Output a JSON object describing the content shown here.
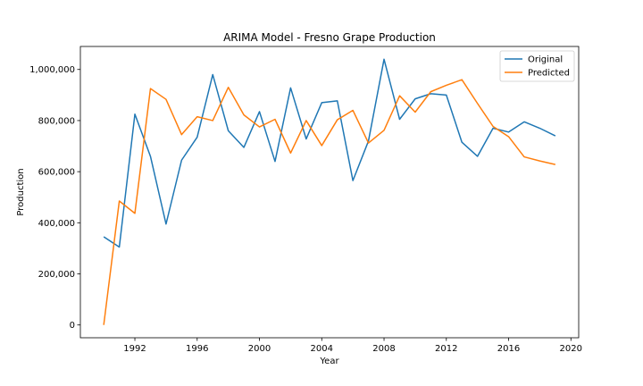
{
  "chart_data": {
    "type": "line",
    "title": "ARIMA Model - Fresno Grape Production",
    "xlabel": "Year",
    "ylabel": "Production",
    "x": [
      1990,
      1991,
      1992,
      1993,
      1994,
      1995,
      1996,
      1997,
      1998,
      1999,
      2000,
      2001,
      2002,
      2003,
      2004,
      2005,
      2006,
      2007,
      2008,
      2009,
      2010,
      2011,
      2012,
      2013,
      2014,
      2015,
      2016,
      2017,
      2018,
      2019
    ],
    "xlim": [
      1988.5,
      2020.5
    ],
    "ylim": [
      -50000,
      1090000
    ],
    "xticks": [
      1992,
      1996,
      2000,
      2004,
      2008,
      2012,
      2016,
      2020
    ],
    "xtick_labels": [
      "1992",
      "1996",
      "2000",
      "2004",
      "2008",
      "2012",
      "2016",
      "2020"
    ],
    "yticks": [
      0,
      200000,
      400000,
      600000,
      800000,
      1000000
    ],
    "ytick_labels": [
      "0",
      "200,000",
      "400,000",
      "600,000",
      "800,000",
      "1,000,000"
    ],
    "grid": false,
    "legend_position": "top-right",
    "series": [
      {
        "name": "Original",
        "color": "#1f77b4",
        "values": [
          345000,
          305000,
          825000,
          660000,
          395000,
          645000,
          735000,
          980000,
          760000,
          695000,
          835000,
          640000,
          928000,
          728000,
          870000,
          877000,
          565000,
          720000,
          1040000,
          805000,
          885000,
          905000,
          900000,
          715000,
          660000,
          770000,
          755000,
          795000,
          770000,
          740000
        ]
      },
      {
        "name": "Predicted",
        "color": "#ff7f0e",
        "values": [
          0,
          485000,
          437000,
          925000,
          883000,
          745000,
          815000,
          800000,
          930000,
          822000,
          775000,
          805000,
          673000,
          800000,
          702000,
          803000,
          840000,
          712000,
          762000,
          897000,
          833000,
          913000,
          938000,
          960000,
          867000,
          777000,
          737000,
          658000,
          642000,
          628000
        ]
      }
    ]
  }
}
